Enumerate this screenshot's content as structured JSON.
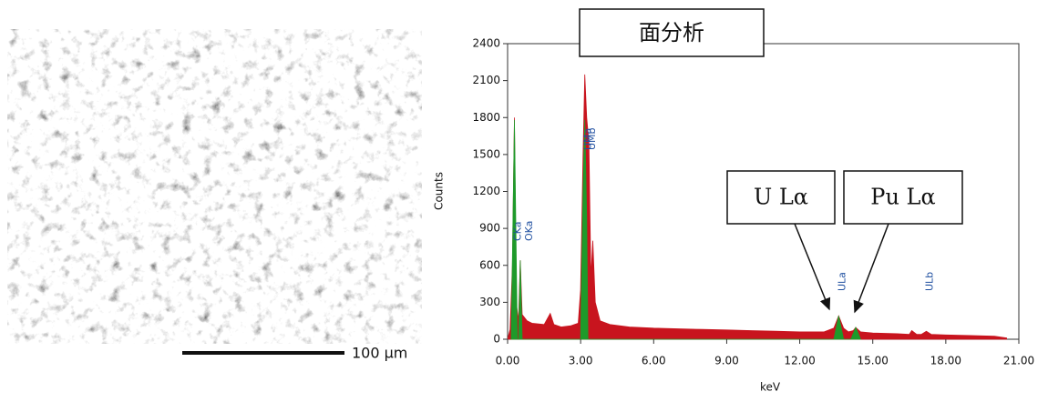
{
  "micrograph": {
    "scale_bar_label": "100 µm"
  },
  "chart_data": {
    "type": "area",
    "title": "面分析",
    "x_label": "keV",
    "y_label": "Counts",
    "xlim": [
      0,
      21
    ],
    "ylim": [
      0,
      2400
    ],
    "xticks": [
      {
        "value": 0,
        "label": "0.00"
      },
      {
        "value": 3,
        "label": "3.00"
      },
      {
        "value": 6,
        "label": "6.00"
      },
      {
        "value": 9,
        "label": "9.00"
      },
      {
        "value": 12,
        "label": "12.00"
      },
      {
        "value": 15,
        "label": "15.00"
      },
      {
        "value": 18,
        "label": "18.00"
      },
      {
        "value": 21,
        "label": "21.00"
      }
    ],
    "yticks": [
      0,
      300,
      600,
      900,
      1200,
      1500,
      1800,
      2100,
      2400
    ],
    "series": [
      {
        "color": "#c8141e",
        "x": [
          0,
          0.1,
          0.2,
          0.28,
          0.35,
          0.45,
          0.52,
          0.6,
          0.8,
          1.0,
          1.5,
          1.75,
          1.9,
          2.2,
          2.6,
          2.9,
          3.0,
          3.1,
          3.17,
          3.25,
          3.34,
          3.42,
          3.5,
          3.6,
          3.8,
          4.2,
          5,
          6,
          7,
          8,
          9,
          10,
          11,
          12,
          13,
          13.4,
          13.6,
          13.8,
          14.0,
          14.2,
          14.3,
          14.5,
          15,
          16,
          16.5,
          16.6,
          16.8,
          17.0,
          17.2,
          17.4,
          18,
          19,
          20,
          20.5
        ],
        "values": [
          0,
          80,
          600,
          1800,
          300,
          150,
          640,
          200,
          150,
          130,
          120,
          210,
          120,
          100,
          110,
          130,
          400,
          1500,
          2150,
          1800,
          1600,
          500,
          800,
          300,
          150,
          120,
          100,
          90,
          85,
          80,
          75,
          70,
          65,
          60,
          60,
          90,
          190,
          90,
          60,
          70,
          95,
          60,
          50,
          45,
          40,
          70,
          40,
          40,
          65,
          40,
          35,
          30,
          25,
          10
        ]
      },
      {
        "color": "#1e9a2a",
        "x": [
          0.15,
          0.28,
          0.4,
          0.45,
          0.52,
          0.6,
          3.0,
          3.1,
          3.17,
          3.25,
          3.3,
          13.4,
          13.6,
          13.8,
          14.1,
          14.3,
          14.5
        ],
        "values": [
          0,
          1780,
          0,
          0,
          640,
          0,
          0,
          1200,
          1780,
          1000,
          0,
          0,
          190,
          0,
          0,
          95,
          0
        ]
      }
    ],
    "peak_labels": [
      {
        "label": "CKa",
        "x": 0.28
      },
      {
        "label": "OKa",
        "x": 0.52
      },
      {
        "label": "UMa",
        "x": 3.17
      },
      {
        "label": "UMb",
        "x": 3.34
      },
      {
        "label": "ULa",
        "x": 13.6
      },
      {
        "label": "ULb",
        "x": 17.2
      }
    ],
    "annotations": [
      "U Lα",
      "Pu Lα"
    ]
  }
}
